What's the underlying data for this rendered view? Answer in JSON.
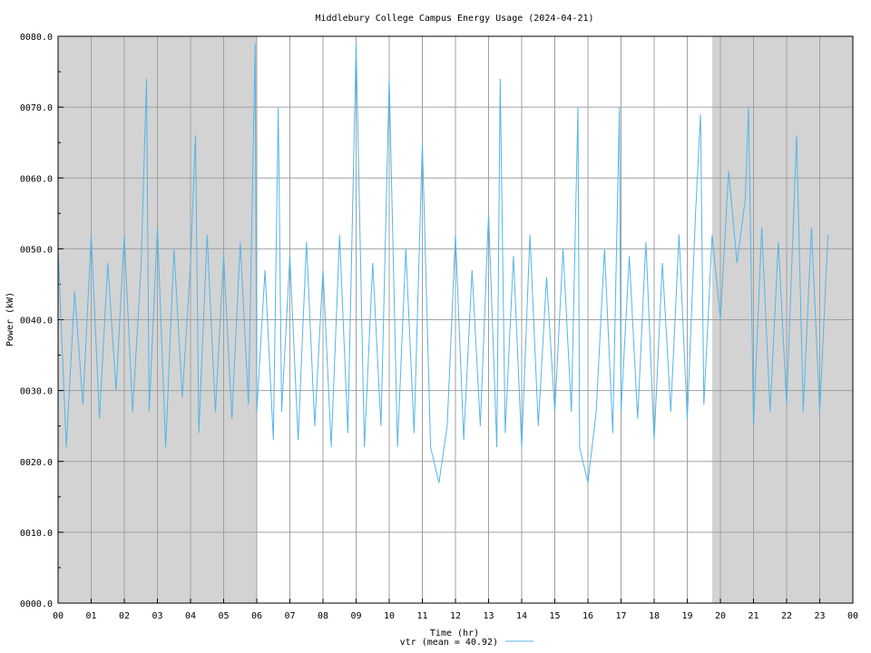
{
  "chart_data": {
    "type": "line",
    "title": "Middlebury College Campus Energy Usage (2024-04-21)",
    "xlabel": "Time (hr)",
    "ylabel": "Power (kW)",
    "xlim": [
      0,
      24
    ],
    "ylim": [
      0,
      80
    ],
    "x_ticks": [
      "00",
      "01",
      "02",
      "03",
      "04",
      "05",
      "06",
      "07",
      "08",
      "09",
      "10",
      "11",
      "12",
      "13",
      "14",
      "15",
      "16",
      "17",
      "18",
      "19",
      "20",
      "21",
      "22",
      "23",
      "00"
    ],
    "y_ticks": [
      "0000.0",
      "0010.0",
      "0020.0",
      "0030.0",
      "0040.0",
      "0050.0",
      "0060.0",
      "0070.0",
      "0080.0"
    ],
    "grid": true,
    "shaded_periods_hr": [
      [
        0,
        6
      ],
      [
        19.75,
        24
      ]
    ],
    "line_color": "#56b4e9",
    "shade_color": "#d3d3d3",
    "legend_placement": "bottom-center",
    "series": [
      {
        "name": "vtr (mean = 40.92)",
        "x": [
          0.0,
          0.25,
          0.5,
          0.75,
          1.0,
          1.25,
          1.5,
          1.75,
          2.0,
          2.25,
          2.5,
          2.67,
          2.75,
          3.0,
          3.25,
          3.5,
          3.75,
          4.0,
          4.15,
          4.25,
          4.5,
          4.75,
          5.0,
          5.25,
          5.5,
          5.75,
          5.95,
          6.0,
          6.25,
          6.5,
          6.65,
          6.75,
          7.0,
          7.25,
          7.5,
          7.75,
          8.0,
          8.25,
          8.5,
          8.75,
          9.0,
          9.25,
          9.5,
          9.75,
          10.0,
          10.25,
          10.5,
          10.75,
          11.0,
          11.25,
          11.5,
          11.75,
          12.0,
          12.25,
          12.5,
          12.75,
          13.0,
          13.25,
          13.35,
          13.5,
          13.75,
          14.0,
          14.25,
          14.5,
          14.75,
          15.0,
          15.25,
          15.5,
          15.7,
          15.75,
          16.0,
          16.25,
          16.5,
          16.75,
          16.95,
          17.0,
          17.25,
          17.5,
          17.75,
          18.0,
          18.25,
          18.5,
          18.75,
          19.0,
          19.25,
          19.4,
          19.5,
          19.75,
          20.0,
          20.25,
          20.5,
          20.75,
          20.85,
          21.0,
          21.25,
          21.5,
          21.75,
          22.0,
          22.3,
          22.5,
          22.75,
          23.0,
          23.25
        ],
        "y": [
          50,
          22,
          44,
          28,
          52,
          26,
          48,
          30,
          52,
          27,
          47,
          74,
          27,
          53,
          22,
          50,
          29,
          48,
          66,
          24,
          52,
          27,
          49,
          26,
          51,
          28,
          79,
          27,
          47,
          23,
          70,
          27,
          49,
          23,
          51,
          25,
          47,
          22,
          52,
          24,
          79,
          22,
          48,
          25,
          74,
          22,
          50,
          24,
          65,
          22,
          17,
          25,
          52,
          23,
          47,
          25,
          55,
          22,
          74,
          24,
          49,
          22,
          52,
          25,
          46,
          27,
          50,
          27,
          70,
          22,
          17,
          27,
          50,
          24,
          70,
          27,
          49,
          26,
          51,
          23,
          48,
          27,
          52,
          26,
          55,
          69,
          28,
          52,
          40,
          61,
          48,
          57,
          70,
          25,
          53,
          27,
          51,
          28,
          66,
          27,
          53,
          27,
          52
        ]
      }
    ]
  }
}
